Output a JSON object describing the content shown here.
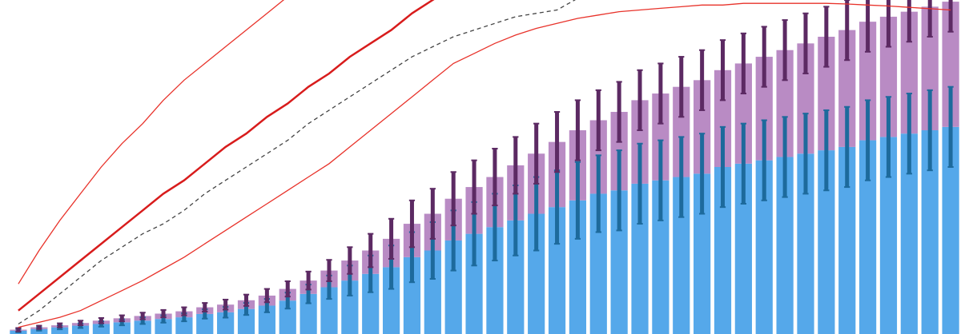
{
  "chart_data": {
    "type": "bar",
    "categories": [
      null,
      null,
      null,
      null,
      null,
      null,
      null,
      null,
      null,
      null,
      null,
      null,
      null,
      null,
      null,
      null,
      null,
      null,
      null,
      null,
      null,
      null,
      null,
      null,
      null,
      null,
      null,
      null,
      null,
      null,
      null,
      null,
      null,
      null,
      null,
      null,
      null,
      null,
      null,
      null,
      null,
      null,
      null,
      null,
      null,
      null
    ],
    "ylim": [
      0,
      100
    ],
    "series": [
      {
        "color": "#55a8ea",
        "error_color": "#1d6a9c",
        "values": [
          1,
          1.5,
          2,
          2.5,
          3,
          3.5,
          4,
          4.5,
          5,
          6,
          6.5,
          7.5,
          8.5,
          10,
          12,
          14,
          16,
          18,
          20,
          23,
          25,
          28,
          30,
          32,
          34,
          36,
          38,
          40,
          42,
          43,
          45,
          46,
          47,
          48,
          50,
          51,
          52,
          53,
          54,
          55,
          56,
          58,
          59,
          60,
          61,
          62
        ],
        "errors": [
          0.5,
          0.5,
          0.6,
          0.7,
          0.8,
          0.9,
          1,
          1.1,
          1.2,
          1.4,
          1.6,
          1.8,
          2,
          2.4,
          2.8,
          3.5,
          4.5,
          5.5,
          6.5,
          7.5,
          8.5,
          9,
          9.5,
          10,
          10.5,
          11,
          11,
          11.5,
          11.5,
          12,
          12,
          12,
          12,
          12,
          12,
          12,
          12,
          12,
          12,
          12,
          12,
          12,
          12,
          12,
          12,
          12
        ]
      },
      {
        "color": "#b98bc4",
        "error_color": "#5c2a63",
        "values": [
          0.3,
          0.5,
          0.6,
          0.8,
          1,
          1.2,
          1.4,
          1.6,
          1.8,
          2,
          2.3,
          2.6,
          3,
          3.5,
          4,
          5,
          6,
          7,
          8.5,
          10,
          11,
          12.5,
          14,
          15,
          16.5,
          18,
          19.5,
          21,
          22,
          23.5,
          25,
          26,
          27,
          28,
          29,
          30,
          31,
          32,
          33,
          34,
          35,
          35.5,
          36,
          36.5,
          37,
          37.5
        ],
        "errors": [
          0.5,
          0.5,
          0.6,
          0.7,
          0.8,
          0.9,
          1,
          1.1,
          1.2,
          1.3,
          1.5,
          1.7,
          2,
          2.3,
          2.7,
          3.2,
          4,
          5,
          6,
          7,
          7.5,
          8,
          8,
          8.5,
          8.5,
          9,
          9,
          9,
          9,
          9,
          9,
          9,
          9,
          9,
          9,
          9,
          9,
          9,
          9,
          9,
          9,
          9,
          9,
          9,
          9,
          9
        ]
      }
    ],
    "lines": [
      {
        "color": "#e8322a",
        "width": 1.3,
        "dashed": false,
        "values": [
          15,
          25,
          34,
          42,
          50,
          57,
          63,
          70,
          76,
          81,
          86,
          91,
          96,
          101,
          null,
          null,
          null,
          null,
          null,
          null,
          null,
          null,
          null,
          null,
          null,
          null,
          null,
          null,
          null,
          null,
          null,
          null,
          null,
          null,
          null,
          null,
          null,
          null,
          null,
          null,
          null,
          null,
          null,
          null,
          null,
          null
        ]
      },
      {
        "color": "#d81c1c",
        "width": 2.5,
        "dashed": false,
        "values": [
          7,
          12,
          17,
          22,
          27,
          32,
          37,
          42,
          46,
          51,
          56,
          60,
          65,
          69,
          74,
          78,
          83,
          87,
          91,
          96,
          100,
          104,
          null,
          null,
          null,
          null,
          null,
          null,
          null,
          null,
          null,
          null,
          null,
          null,
          null,
          null,
          null,
          null,
          null,
          null,
          null,
          null,
          null,
          null,
          null,
          null
        ]
      },
      {
        "color": "#444444",
        "width": 1.3,
        "dashed": true,
        "values": [
          3,
          7,
          12,
          17,
          22,
          26,
          30,
          33,
          37,
          42,
          46,
          50,
          54,
          58,
          63,
          67,
          71,
          75,
          79,
          83,
          86,
          89,
          91,
          93,
          95,
          96,
          97,
          100.5,
          null,
          null,
          null,
          null,
          null,
          null,
          null,
          null,
          null,
          null,
          null,
          null,
          null,
          null,
          null,
          null,
          null,
          null
        ]
      },
      {
        "color": "#e8322a",
        "width": 1.3,
        "dashed": false,
        "values": [
          2,
          3.5,
          5,
          7,
          10,
          13,
          16,
          19.5,
          23,
          27,
          31,
          35,
          39,
          43,
          47,
          51,
          56,
          61,
          66,
          71,
          76,
          81,
          84,
          87,
          89.5,
          91.5,
          93,
          94.5,
          95.5,
          96.5,
          97,
          97.5,
          98,
          98.5,
          98.5,
          99,
          99,
          99,
          99,
          99,
          98.8,
          98.5,
          98.2,
          97.8,
          97.4,
          97
        ]
      }
    ]
  }
}
